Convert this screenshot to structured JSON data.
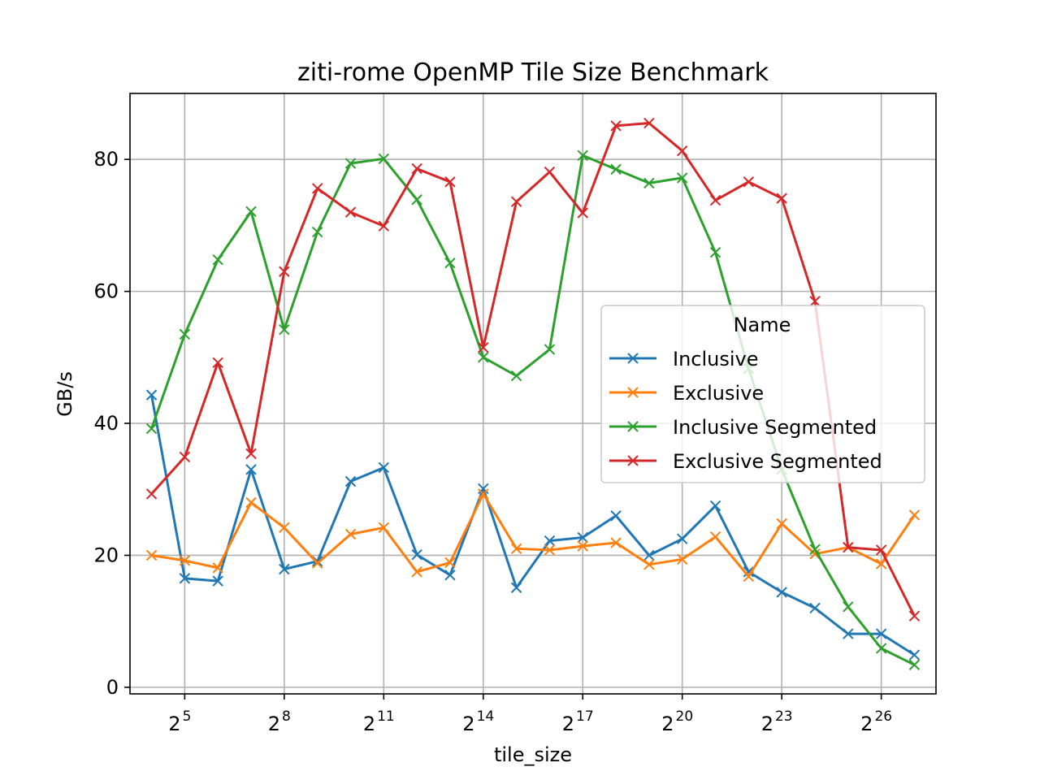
{
  "chart_data": {
    "type": "line",
    "title": "ziti-rome OpenMP Tile Size Benchmark",
    "xlabel": "tile_size",
    "ylabel": "GB/s",
    "x_scale": "log2",
    "x": [
      16,
      32,
      64,
      128,
      256,
      512,
      1024,
      2048,
      4096,
      8192,
      16384,
      32768,
      65536,
      131072,
      262144,
      524288,
      1048576,
      2097152,
      4194304,
      8388608,
      16777216,
      33554432,
      67108864,
      134217728
    ],
    "x_ticks": [
      {
        "base": "2",
        "exp": "5",
        "value": 32
      },
      {
        "base": "2",
        "exp": "8",
        "value": 256
      },
      {
        "base": "2",
        "exp": "11",
        "value": 2048
      },
      {
        "base": "2",
        "exp": "14",
        "value": 16384
      },
      {
        "base": "2",
        "exp": "17",
        "value": 131072
      },
      {
        "base": "2",
        "exp": "20",
        "value": 1048576
      },
      {
        "base": "2",
        "exp": "23",
        "value": 8388608
      },
      {
        "base": "2",
        "exp": "26",
        "value": 67108864
      }
    ],
    "y_ticks": [
      "0",
      "20",
      "40",
      "60",
      "80"
    ],
    "ylim": [
      -1,
      90
    ],
    "grid": true,
    "legend_title": "Name",
    "legend_position": "center-right",
    "marker": "x",
    "series": [
      {
        "name": "Inclusive",
        "color": "#1f77b4",
        "values": [
          44.3,
          16.5,
          16.1,
          33.0,
          17.9,
          19.1,
          31.2,
          33.3,
          20.1,
          17.0,
          30.1,
          15.1,
          22.2,
          22.7,
          26.0,
          20.0,
          22.5,
          27.5,
          17.5,
          14.4,
          12.0,
          8.1,
          8.1,
          4.9
        ]
      },
      {
        "name": "Exclusive",
        "color": "#ff7f0e",
        "values": [
          20.0,
          19.2,
          18.1,
          28.0,
          24.2,
          18.8,
          23.2,
          24.2,
          17.5,
          18.9,
          29.3,
          21.0,
          20.8,
          21.4,
          21.9,
          18.6,
          19.4,
          22.8,
          16.8,
          24.8,
          20.2,
          21.2,
          18.7,
          26.1
        ]
      },
      {
        "name": "Inclusive Segmented",
        "color": "#2ca02c",
        "values": [
          39.2,
          53.5,
          64.8,
          72.1,
          54.2,
          69.0,
          79.4,
          80.1,
          73.9,
          64.3,
          50.0,
          47.2,
          51.2,
          80.6,
          78.5,
          76.4,
          77.2,
          65.9,
          48.3,
          33.0,
          20.9,
          12.2,
          5.9,
          3.4
        ]
      },
      {
        "name": "Exclusive Segmented",
        "color": "#d62728",
        "values": [
          29.3,
          34.9,
          49.2,
          35.4,
          63.0,
          75.6,
          72.0,
          69.9,
          78.6,
          76.6,
          51.5,
          73.6,
          78.1,
          71.9,
          85.1,
          85.5,
          81.3,
          73.8,
          76.6,
          74.1,
          58.5,
          21.2,
          20.8,
          10.8
        ]
      }
    ]
  }
}
